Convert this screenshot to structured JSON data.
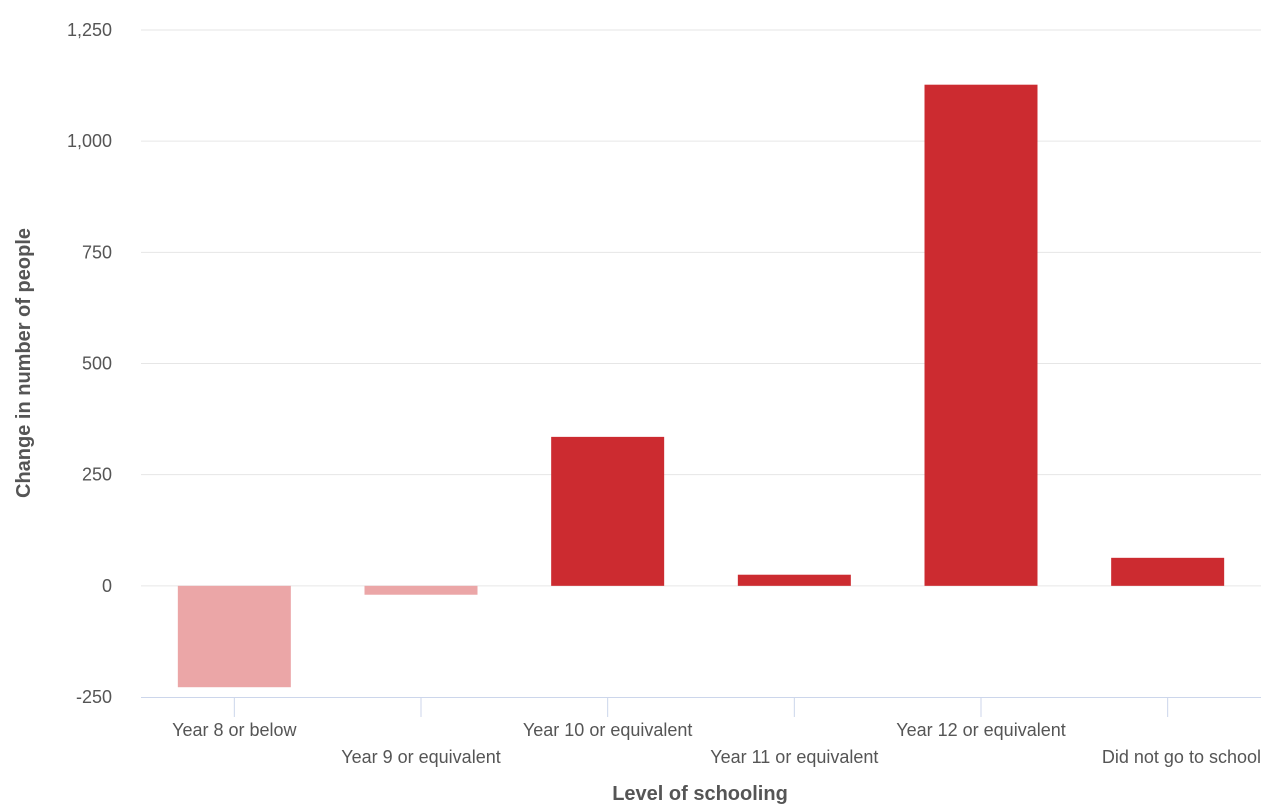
{
  "chart_data": {
    "type": "bar",
    "categories": [
      "Year 8 or below",
      "Year 9 or equivalent",
      "Year 10 or equivalent",
      "Year 11 or equivalent",
      "Year 12 or equivalent",
      "Did not go to school"
    ],
    "values": [
      -228,
      -20,
      335,
      25,
      1127,
      63
    ],
    "xlabel": "Level of schooling",
    "ylabel": "Change in number of people",
    "ylim": [
      -250,
      1250
    ],
    "yticks": [
      -250,
      0,
      250,
      500,
      750,
      1000,
      1250
    ],
    "ytick_labels": [
      "-250",
      "0",
      "250",
      "500",
      "750",
      "1,000",
      "1,250"
    ],
    "grid": true,
    "colors": {
      "positive": "#cc2b30",
      "negative": "#eba6a7"
    }
  }
}
